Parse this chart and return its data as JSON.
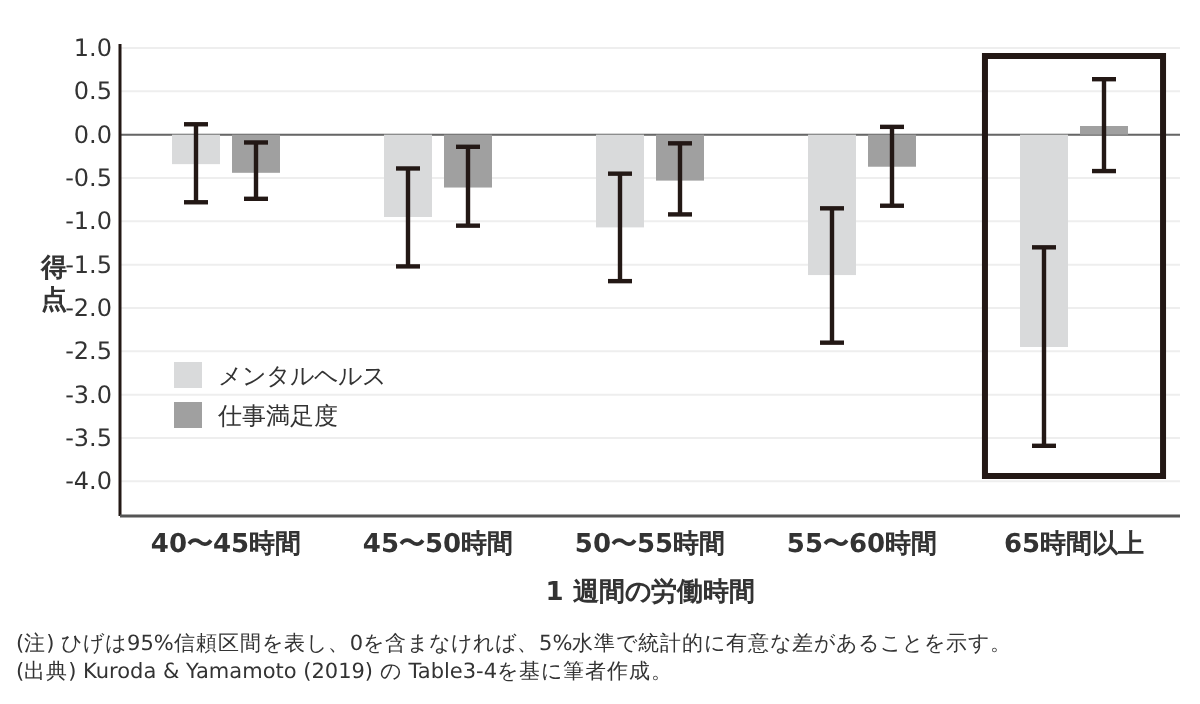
{
  "chart_data": {
    "type": "bar",
    "xlabel": "1 週間の労働時間",
    "ylabel": "得点",
    "categories": [
      "40〜45時間",
      "45〜50時間",
      "50〜55時間",
      "55〜60時間",
      "65時間以上"
    ],
    "series": [
      {
        "name": "メンタルヘルス",
        "color": "#d9dadb",
        "values": [
          -0.34,
          -0.95,
          -1.07,
          -1.62,
          -2.45
        ],
        "errors": [
          [
            -0.78,
            0.12
          ],
          [
            -1.52,
            -0.39
          ],
          [
            -1.69,
            -0.45
          ],
          [
            -2.4,
            -0.85
          ],
          [
            -3.59,
            -1.3
          ]
        ]
      },
      {
        "name": "仕事満足度",
        "color": "#a0a0a0",
        "values": [
          -0.44,
          -0.61,
          -0.53,
          -0.37,
          0.1
        ],
        "errors": [
          [
            -0.74,
            -0.09
          ],
          [
            -1.05,
            -0.14
          ],
          [
            -0.92,
            -0.1
          ],
          [
            -0.82,
            0.09
          ],
          [
            -0.42,
            0.64
          ]
        ]
      }
    ],
    "ylim": [
      -4.4,
      1.0
    ],
    "yticks": [
      {
        "value": 1,
        "label": "1.0"
      },
      {
        "value": 0.5,
        "label": "0.5"
      },
      {
        "value": 0,
        "label": "0.0"
      },
      {
        "value": -0.5,
        "label": "-0.5"
      },
      {
        "value": -1,
        "label": "-1.0"
      },
      {
        "value": -1.5,
        "label": "-1.5"
      },
      {
        "value": -2,
        "label": "-2.0"
      },
      {
        "value": -2.5,
        "label": "-2.5"
      },
      {
        "value": -3,
        "label": "-3.0"
      },
      {
        "value": -3.5,
        "label": "-3.5"
      },
      {
        "value": -4,
        "label": "-4.0"
      }
    ],
    "ref_lines": [
      {
        "axis": "y",
        "value": 0,
        "color": "#666666"
      }
    ],
    "grid": "y",
    "legend": "bottom left",
    "annotations": [
      "(注) ひげは95%信頼区間を表し、0を含まなければ、5%水準で統計的に有意な差があることを示す。",
      "(出典) Kuroda & Yamamoto (2019) の Table3-4を基に筆者作成。"
    ]
  }
}
